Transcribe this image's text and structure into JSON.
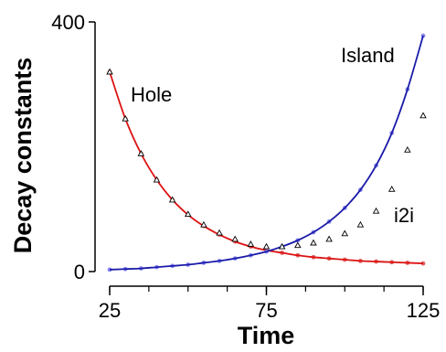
{
  "chart_data": {
    "type": "line",
    "title": "",
    "xlabel": "Time",
    "ylabel": "Decay constants",
    "xlim": [
      25,
      125
    ],
    "ylim": [
      0,
      400
    ],
    "x_ticks_labeled": [
      25,
      75,
      125
    ],
    "x_ticks_minor": [
      25,
      37.5,
      50,
      62.5,
      75,
      87.5,
      100,
      112.5,
      125
    ],
    "y_ticks_labeled": [
      0,
      400
    ],
    "grid": false,
    "legend": "none",
    "annotations": [
      {
        "text": "Island"
      },
      {
        "text": "Hole"
      },
      {
        "text": "i2i"
      }
    ],
    "series": [
      {
        "name": "Hole",
        "style": "line+circles",
        "color": "#dd1111",
        "marker_color": "#e06666",
        "x": [
          25,
          30,
          35,
          40,
          45,
          50,
          55,
          60,
          65,
          70,
          75,
          80,
          85,
          90,
          95,
          100,
          105,
          110,
          115,
          120,
          125
        ],
        "y": [
          320,
          245,
          189,
          147,
          115,
          91,
          73,
          59,
          48,
          40,
          34,
          30,
          26,
          23,
          21,
          19,
          17,
          16,
          15,
          14,
          13
        ]
      },
      {
        "name": "Island",
        "style": "line+circles",
        "color": "#1a1aaa",
        "marker_color": "#8888ee",
        "x": [
          25,
          30,
          35,
          40,
          45,
          50,
          55,
          60,
          65,
          70,
          75,
          80,
          85,
          90,
          95,
          100,
          105,
          110,
          115,
          120,
          125
        ],
        "y": [
          3,
          4,
          5,
          7,
          9,
          11,
          14,
          17,
          21,
          26,
          32,
          40,
          50,
          63,
          80,
          102,
          131,
          170,
          222,
          292,
          378
        ]
      },
      {
        "name": "i2i",
        "style": "triangles",
        "color": "#000000",
        "x": [
          25,
          30,
          35,
          40,
          45,
          50,
          55,
          60,
          65,
          70,
          75,
          80,
          85,
          90,
          95,
          100,
          105,
          110,
          115,
          120,
          125
        ],
        "y": [
          320,
          245,
          189,
          147,
          115,
          92,
          75,
          62,
          52,
          44,
          40,
          40,
          42,
          46,
          52,
          61,
          75,
          97,
          132,
          195,
          250
        ]
      }
    ]
  }
}
